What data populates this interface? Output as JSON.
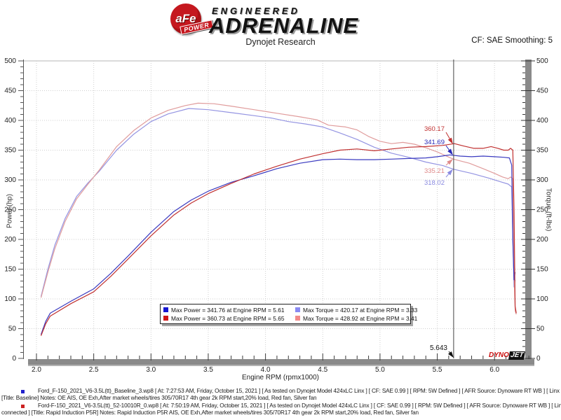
{
  "header": {
    "logo": {
      "badge_text": "aFe",
      "badge_sub": "POWER",
      "line1": "ENGINEERED",
      "line2": "ADRENALINE"
    },
    "subtitle": "Dynojet Research",
    "smoothing": "CF: SAE Smoothing: 5"
  },
  "chart_data": {
    "type": "line",
    "xlabel": "Engine RPM (rpmx1000)",
    "ylabel_left": "Power (hp)",
    "ylabel_right": "Torque (ft-lbs)",
    "xlim": [
      2.0,
      6.32
    ],
    "ylim": [
      0,
      500
    ],
    "x_ticks": [
      2.0,
      2.5,
      3.0,
      3.5,
      4.0,
      4.5,
      5.0,
      5.5,
      6.0
    ],
    "y_tick_step": 50,
    "y_minor_step": 10,
    "x_minor_step": 0.1,
    "grid": "dotted",
    "cursor": {
      "rpm": 5.643,
      "label": "5.643"
    },
    "annotations": [
      {
        "text": "360.17",
        "value": 360.17,
        "color": "#c03030",
        "label_y": 187
      },
      {
        "text": "341.69",
        "value": 341.69,
        "color": "#2828b8",
        "label_y": 206
      },
      {
        "text": "335.21",
        "value": 335.21,
        "color": "#e08a8a",
        "label_y": 247
      },
      {
        "text": "318.02",
        "value": 318.02,
        "color": "#8a8ae0",
        "label_y": 264
      }
    ],
    "series": [
      {
        "name": "baseline_torque",
        "color": "#9494e2",
        "points": [
          [
            2.04,
            104
          ],
          [
            2.1,
            150
          ],
          [
            2.16,
            190
          ],
          [
            2.25,
            235
          ],
          [
            2.35,
            272
          ],
          [
            2.45,
            295
          ],
          [
            2.55,
            315
          ],
          [
            2.7,
            350
          ],
          [
            2.85,
            377
          ],
          [
            3.0,
            398
          ],
          [
            3.15,
            411
          ],
          [
            3.33,
            420
          ],
          [
            3.5,
            418
          ],
          [
            3.7,
            413
          ],
          [
            3.9,
            408
          ],
          [
            4.05,
            404
          ],
          [
            4.2,
            398
          ],
          [
            4.35,
            394
          ],
          [
            4.5,
            389
          ],
          [
            4.65,
            379
          ],
          [
            4.8,
            368
          ],
          [
            4.95,
            355
          ],
          [
            5.1,
            345
          ],
          [
            5.25,
            338
          ],
          [
            5.4,
            330
          ],
          [
            5.55,
            324
          ],
          [
            5.64,
            318
          ],
          [
            5.8,
            311
          ],
          [
            5.95,
            303
          ],
          [
            6.05,
            297
          ],
          [
            6.12,
            293
          ],
          [
            6.15,
            288
          ],
          [
            6.16,
            200
          ],
          [
            6.17,
            120
          ],
          [
            6.18,
            132
          ]
        ]
      },
      {
        "name": "p5r_torque",
        "color": "#e09c9c",
        "points": [
          [
            2.04,
            102
          ],
          [
            2.1,
            145
          ],
          [
            2.16,
            184
          ],
          [
            2.25,
            230
          ],
          [
            2.35,
            268
          ],
          [
            2.45,
            293
          ],
          [
            2.55,
            317
          ],
          [
            2.7,
            356
          ],
          [
            2.85,
            383
          ],
          [
            3.0,
            404
          ],
          [
            3.15,
            417
          ],
          [
            3.3,
            425
          ],
          [
            3.41,
            429
          ],
          [
            3.55,
            428
          ],
          [
            3.7,
            424
          ],
          [
            3.9,
            418
          ],
          [
            4.1,
            412
          ],
          [
            4.3,
            406
          ],
          [
            4.45,
            401
          ],
          [
            4.55,
            392
          ],
          [
            4.7,
            389
          ],
          [
            4.8,
            384
          ],
          [
            4.9,
            373
          ],
          [
            5.0,
            365
          ],
          [
            5.1,
            361
          ],
          [
            5.2,
            363
          ],
          [
            5.3,
            360
          ],
          [
            5.4,
            354
          ],
          [
            5.5,
            347
          ],
          [
            5.64,
            335
          ],
          [
            5.78,
            328
          ],
          [
            5.9,
            319
          ],
          [
            6.0,
            311
          ],
          [
            6.07,
            305
          ],
          [
            6.12,
            302
          ],
          [
            6.14,
            305
          ],
          [
            6.16,
            302
          ],
          [
            6.17,
            150
          ],
          [
            6.18,
            80
          ],
          [
            6.19,
            74
          ]
        ]
      },
      {
        "name": "baseline_power",
        "color": "#3a3ac0",
        "points": [
          [
            2.04,
            40
          ],
          [
            2.08,
            62
          ],
          [
            2.12,
            76
          ],
          [
            2.3,
            96
          ],
          [
            2.5,
            117
          ],
          [
            2.65,
            143
          ],
          [
            2.8,
            172
          ],
          [
            3.0,
            212
          ],
          [
            3.2,
            247
          ],
          [
            3.35,
            266
          ],
          [
            3.5,
            281
          ],
          [
            3.7,
            296
          ],
          [
            3.9,
            307
          ],
          [
            4.1,
            319
          ],
          [
            4.3,
            328
          ],
          [
            4.5,
            334
          ],
          [
            4.65,
            335
          ],
          [
            4.8,
            334
          ],
          [
            4.95,
            334
          ],
          [
            5.1,
            335
          ],
          [
            5.25,
            336
          ],
          [
            5.4,
            337
          ],
          [
            5.5,
            339
          ],
          [
            5.61,
            342
          ],
          [
            5.7,
            340
          ],
          [
            5.8,
            339
          ],
          [
            5.9,
            340
          ],
          [
            6.0,
            339
          ],
          [
            6.08,
            338
          ],
          [
            6.13,
            337
          ],
          [
            6.15,
            325
          ],
          [
            6.16,
            200
          ],
          [
            6.17,
            132
          ],
          [
            6.18,
            145
          ]
        ]
      },
      {
        "name": "p5r_power",
        "color": "#c03030",
        "points": [
          [
            2.04,
            38
          ],
          [
            2.08,
            58
          ],
          [
            2.12,
            71
          ],
          [
            2.3,
            92
          ],
          [
            2.5,
            112
          ],
          [
            2.65,
            138
          ],
          [
            2.8,
            167
          ],
          [
            3.0,
            206
          ],
          [
            3.2,
            241
          ],
          [
            3.35,
            261
          ],
          [
            3.5,
            277
          ],
          [
            3.7,
            294
          ],
          [
            3.9,
            310
          ],
          [
            4.1,
            323
          ],
          [
            4.3,
            335
          ],
          [
            4.5,
            344
          ],
          [
            4.65,
            350
          ],
          [
            4.8,
            352
          ],
          [
            4.95,
            349
          ],
          [
            5.1,
            352
          ],
          [
            5.25,
            355
          ],
          [
            5.4,
            356
          ],
          [
            5.55,
            358
          ],
          [
            5.65,
            361
          ],
          [
            5.73,
            357
          ],
          [
            5.82,
            353
          ],
          [
            5.9,
            353
          ],
          [
            5.97,
            356
          ],
          [
            6.03,
            353
          ],
          [
            6.08,
            350
          ],
          [
            6.12,
            350
          ],
          [
            6.14,
            353
          ],
          [
            6.16,
            350
          ],
          [
            6.17,
            250
          ],
          [
            6.18,
            88
          ],
          [
            6.19,
            76
          ]
        ]
      }
    ],
    "legend": {
      "items": [
        {
          "color": "#1616d0",
          "label": "Max Power = 341.76 at Engine RPM = 5.61"
        },
        {
          "color": "#8a8af2",
          "label": "Max Torque = 420.17 at Engine RPM = 3.33"
        },
        {
          "color": "#d01616",
          "label": "Max Power = 360.73 at Engine RPM = 5.65"
        },
        {
          "color": "#f28a8a",
          "label": "Max Torque = 428.92 at Engine RPM = 3.41"
        }
      ]
    }
  },
  "watermark": {
    "dyno": "DYNO",
    "jet": "JET"
  },
  "footer": {
    "entries": [
      {
        "bullet_color": "#2222cc",
        "line1": "Ford_F-150_2021_V6-3.5L(tt)_Baseline_3.wp8 [ At: 7:27:53 AM, Friday, October 15, 2021 ] [ As tested on Dynojet Model 424xLC Linx ] [ CF: SAE 0.99 ] [ RPM: 5W Defined ] [ AFR Source: Dynoware RT WB ] [ Linx not connected ]",
        "line2": "[Title: Baseline]  Notes: OE AIS, OE Exh,After market wheels/tires 305/70R17 4th gear 2k RPM start,20% load, Red fan, Silver fan"
      },
      {
        "bullet_color": "#cc2222",
        "line1": "Ford-F-150_2021_V6-3.5L(tt)_52-10010R_0.wp8 [ At: 7:50:19 AM, Friday, October 15, 2021 ] [ As tested on Dynojet Model 424xLC Linx ] [ CF: SAE 0.99 ] [ RPM: 5W Defined ] [ AFR Source: Dynoware RT WB ] [ Linx not",
        "line2": "connected ] [Title: Rapid Induction P5R]  Notes: Rapid Induction P5R AIS, OE Exh,After market wheels/tires 305/70R17 4th gear 2k RPM start,20% load, Red fan, Silver fan"
      }
    ]
  }
}
